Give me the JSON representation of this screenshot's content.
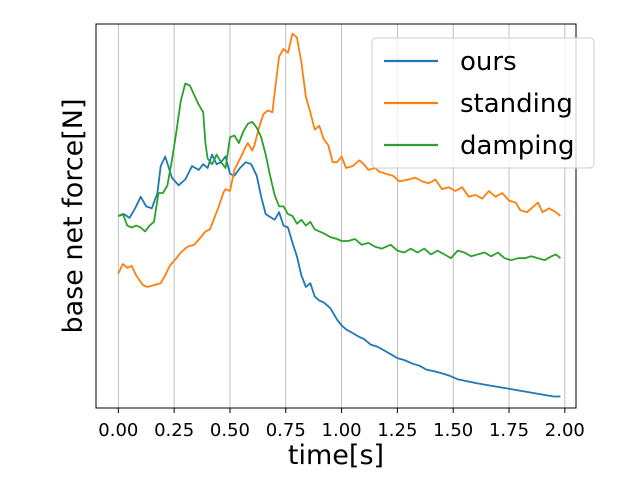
{
  "chart_data": {
    "type": "line",
    "xlabel": "time[s]",
    "ylabel": "base net force[N]",
    "xlim": [
      -0.1,
      2.05
    ],
    "ylim": [
      0,
      100
    ],
    "x_ticks": [
      "0.00",
      "0.25",
      "0.50",
      "0.75",
      "1.00",
      "1.25",
      "1.50",
      "1.75",
      "2.00"
    ],
    "y_ticks_labeled": false,
    "grid": "vertical",
    "legend_position": "top-right",
    "series": [
      {
        "name": "ours",
        "color": "#1f77b4",
        "points": [
          [
            0.0,
            50.0
          ],
          [
            0.025,
            50.5
          ],
          [
            0.05,
            49.5
          ],
          [
            0.075,
            52.0
          ],
          [
            0.1,
            55.0
          ],
          [
            0.125,
            52.5
          ],
          [
            0.15,
            52.0
          ],
          [
            0.175,
            56.0
          ],
          [
            0.19,
            63.0
          ],
          [
            0.21,
            65.5
          ],
          [
            0.24,
            60.0
          ],
          [
            0.27,
            58.0
          ],
          [
            0.3,
            59.5
          ],
          [
            0.33,
            63.0
          ],
          [
            0.36,
            62.0
          ],
          [
            0.38,
            63.5
          ],
          [
            0.4,
            62.5
          ],
          [
            0.42,
            66.0
          ],
          [
            0.44,
            63.5
          ],
          [
            0.46,
            64.0
          ],
          [
            0.48,
            65.5
          ],
          [
            0.5,
            61.0
          ],
          [
            0.52,
            60.5
          ],
          [
            0.545,
            62.5
          ],
          [
            0.57,
            64.0
          ],
          [
            0.595,
            63.5
          ],
          [
            0.62,
            60.5
          ],
          [
            0.64,
            55.0
          ],
          [
            0.66,
            50.5
          ],
          [
            0.7,
            49.0
          ],
          [
            0.72,
            51.0
          ],
          [
            0.74,
            47.5
          ],
          [
            0.76,
            47.0
          ],
          [
            0.78,
            43.0
          ],
          [
            0.8,
            39.5
          ],
          [
            0.82,
            34.5
          ],
          [
            0.84,
            31.5
          ],
          [
            0.86,
            32.5
          ],
          [
            0.88,
            29.0
          ],
          [
            0.9,
            28.0
          ],
          [
            0.92,
            27.5
          ],
          [
            0.95,
            26.0
          ],
          [
            0.98,
            23.0
          ],
          [
            1.0,
            21.5
          ],
          [
            1.02,
            20.5
          ],
          [
            1.05,
            19.5
          ],
          [
            1.08,
            18.5
          ],
          [
            1.1,
            18.0
          ],
          [
            1.13,
            16.5
          ],
          [
            1.16,
            16.0
          ],
          [
            1.19,
            15.0
          ],
          [
            1.22,
            14.0
          ],
          [
            1.25,
            13.0
          ],
          [
            1.28,
            12.5
          ],
          [
            1.32,
            11.5
          ],
          [
            1.35,
            11.0
          ],
          [
            1.38,
            10.0
          ],
          [
            1.42,
            9.5
          ],
          [
            1.45,
            9.0
          ],
          [
            1.48,
            8.5
          ],
          [
            1.52,
            7.5
          ],
          [
            1.56,
            7.0
          ],
          [
            1.6,
            6.5
          ],
          [
            1.65,
            6.0
          ],
          [
            1.7,
            5.5
          ],
          [
            1.75,
            5.0
          ],
          [
            1.8,
            4.5
          ],
          [
            1.85,
            4.0
          ],
          [
            1.9,
            3.5
          ],
          [
            1.95,
            3.0
          ],
          [
            1.98,
            3.0
          ]
        ]
      },
      {
        "name": "standing",
        "color": "#ff7f0e",
        "points": [
          [
            0.0,
            35.0
          ],
          [
            0.02,
            37.5
          ],
          [
            0.04,
            36.5
          ],
          [
            0.06,
            37.0
          ],
          [
            0.08,
            34.5
          ],
          [
            0.11,
            32.0
          ],
          [
            0.13,
            31.5
          ],
          [
            0.16,
            32.0
          ],
          [
            0.19,
            32.5
          ],
          [
            0.21,
            34.5
          ],
          [
            0.23,
            37.0
          ],
          [
            0.26,
            39.0
          ],
          [
            0.28,
            40.5
          ],
          [
            0.31,
            42.0
          ],
          [
            0.34,
            42.5
          ],
          [
            0.37,
            44.5
          ],
          [
            0.39,
            46.0
          ],
          [
            0.41,
            46.5
          ],
          [
            0.43,
            49.5
          ],
          [
            0.45,
            52.5
          ],
          [
            0.47,
            56.0
          ],
          [
            0.48,
            57.0
          ],
          [
            0.5,
            56.5
          ],
          [
            0.52,
            62.0
          ],
          [
            0.55,
            65.5
          ],
          [
            0.57,
            68.0
          ],
          [
            0.58,
            69.0
          ],
          [
            0.6,
            67.0
          ],
          [
            0.61,
            68.5
          ],
          [
            0.63,
            73.0
          ],
          [
            0.65,
            76.5
          ],
          [
            0.67,
            77.5
          ],
          [
            0.69,
            77.0
          ],
          [
            0.7,
            82.0
          ],
          [
            0.72,
            91.5
          ],
          [
            0.74,
            93.5
          ],
          [
            0.76,
            92.5
          ],
          [
            0.78,
            97.5
          ],
          [
            0.8,
            96.5
          ],
          [
            0.82,
            90.0
          ],
          [
            0.84,
            81.0
          ],
          [
            0.86,
            77.0
          ],
          [
            0.88,
            72.5
          ],
          [
            0.9,
            73.5
          ],
          [
            0.92,
            70.0
          ],
          [
            0.94,
            68.5
          ],
          [
            0.96,
            64.0
          ],
          [
            0.98,
            64.0
          ],
          [
            1.0,
            65.5
          ],
          [
            1.02,
            62.5
          ],
          [
            1.05,
            63.0
          ],
          [
            1.08,
            64.5
          ],
          [
            1.1,
            63.5
          ],
          [
            1.12,
            62.0
          ],
          [
            1.15,
            62.5
          ],
          [
            1.17,
            61.5
          ],
          [
            1.2,
            61.0
          ],
          [
            1.23,
            60.5
          ],
          [
            1.26,
            59.0
          ],
          [
            1.3,
            59.5
          ],
          [
            1.33,
            60.0
          ],
          [
            1.36,
            59.0
          ],
          [
            1.39,
            58.5
          ],
          [
            1.42,
            59.5
          ],
          [
            1.45,
            57.0
          ],
          [
            1.48,
            57.5
          ],
          [
            1.51,
            56.5
          ],
          [
            1.54,
            57.5
          ],
          [
            1.57,
            55.0
          ],
          [
            1.6,
            55.5
          ],
          [
            1.63,
            54.5
          ],
          [
            1.66,
            56.5
          ],
          [
            1.69,
            55.0
          ],
          [
            1.72,
            56.0
          ],
          [
            1.75,
            54.0
          ],
          [
            1.78,
            53.5
          ],
          [
            1.8,
            51.5
          ],
          [
            1.83,
            51.0
          ],
          [
            1.86,
            52.5
          ],
          [
            1.88,
            53.5
          ],
          [
            1.9,
            51.0
          ],
          [
            1.93,
            52.0
          ],
          [
            1.96,
            51.0
          ],
          [
            1.98,
            50.0
          ]
        ]
      },
      {
        "name": "damping",
        "color": "#2ca02c",
        "points": [
          [
            0.0,
            50.0
          ],
          [
            0.02,
            50.5
          ],
          [
            0.04,
            47.5
          ],
          [
            0.06,
            47.0
          ],
          [
            0.08,
            47.5
          ],
          [
            0.1,
            47.0
          ],
          [
            0.12,
            46.0
          ],
          [
            0.14,
            47.5
          ],
          [
            0.16,
            48.5
          ],
          [
            0.18,
            56.0
          ],
          [
            0.2,
            56.0
          ],
          [
            0.22,
            58.0
          ],
          [
            0.24,
            64.5
          ],
          [
            0.26,
            72.0
          ],
          [
            0.28,
            80.0
          ],
          [
            0.3,
            84.5
          ],
          [
            0.32,
            84.0
          ],
          [
            0.34,
            81.5
          ],
          [
            0.36,
            79.0
          ],
          [
            0.38,
            77.0
          ],
          [
            0.39,
            69.0
          ],
          [
            0.4,
            65.0
          ],
          [
            0.42,
            63.5
          ],
          [
            0.44,
            66.0
          ],
          [
            0.46,
            64.0
          ],
          [
            0.48,
            62.5
          ],
          [
            0.5,
            70.5
          ],
          [
            0.52,
            71.0
          ],
          [
            0.54,
            69.0
          ],
          [
            0.56,
            72.0
          ],
          [
            0.58,
            74.0
          ],
          [
            0.6,
            74.5
          ],
          [
            0.62,
            73.0
          ],
          [
            0.64,
            70.5
          ],
          [
            0.66,
            66.0
          ],
          [
            0.68,
            60.5
          ],
          [
            0.7,
            55.5
          ],
          [
            0.72,
            52.5
          ],
          [
            0.74,
            52.5
          ],
          [
            0.76,
            50.5
          ],
          [
            0.78,
            50.0
          ],
          [
            0.8,
            48.0
          ],
          [
            0.82,
            49.0
          ],
          [
            0.84,
            47.5
          ],
          [
            0.86,
            48.5
          ],
          [
            0.88,
            46.5
          ],
          [
            0.9,
            46.0
          ],
          [
            0.92,
            45.5
          ],
          [
            0.95,
            44.5
          ],
          [
            0.98,
            44.0
          ],
          [
            1.0,
            43.5
          ],
          [
            1.03,
            43.5
          ],
          [
            1.06,
            44.0
          ],
          [
            1.09,
            42.5
          ],
          [
            1.12,
            43.0
          ],
          [
            1.15,
            42.0
          ],
          [
            1.18,
            41.5
          ],
          [
            1.22,
            42.5
          ],
          [
            1.25,
            41.0
          ],
          [
            1.28,
            40.5
          ],
          [
            1.31,
            41.5
          ],
          [
            1.34,
            40.5
          ],
          [
            1.37,
            41.5
          ],
          [
            1.4,
            40.0
          ],
          [
            1.43,
            41.0
          ],
          [
            1.46,
            40.0
          ],
          [
            1.49,
            39.0
          ],
          [
            1.52,
            41.0
          ],
          [
            1.55,
            40.5
          ],
          [
            1.58,
            39.5
          ],
          [
            1.61,
            40.0
          ],
          [
            1.64,
            40.5
          ],
          [
            1.67,
            39.5
          ],
          [
            1.7,
            40.5
          ],
          [
            1.73,
            39.0
          ],
          [
            1.76,
            38.5
          ],
          [
            1.79,
            39.0
          ],
          [
            1.82,
            39.0
          ],
          [
            1.85,
            39.5
          ],
          [
            1.88,
            39.0
          ],
          [
            1.91,
            38.5
          ],
          [
            1.94,
            39.5
          ],
          [
            1.96,
            40.0
          ],
          [
            1.98,
            39.0
          ]
        ]
      }
    ]
  }
}
